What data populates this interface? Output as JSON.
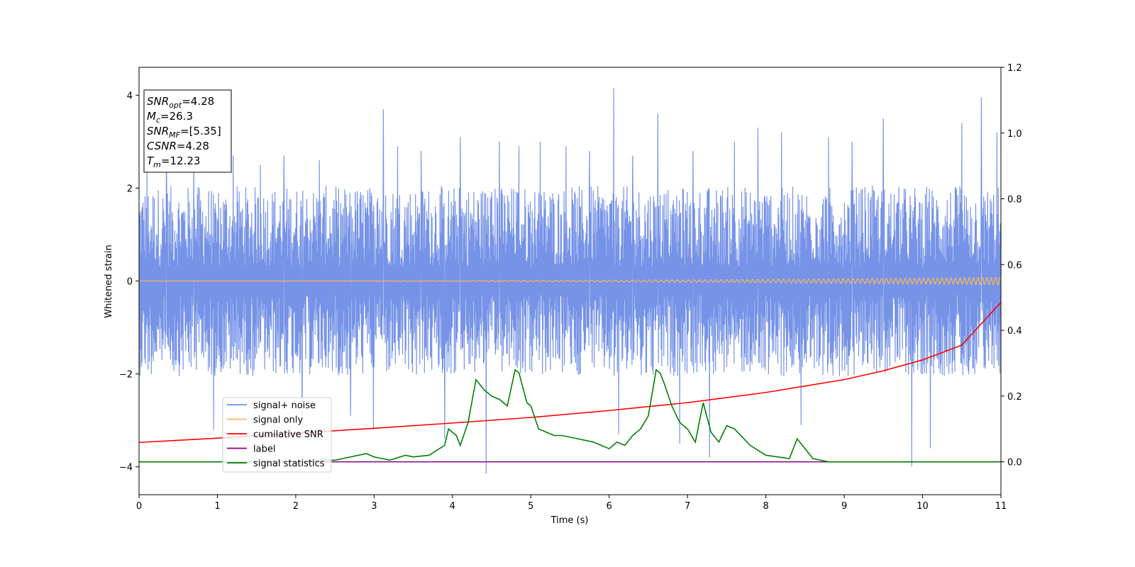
{
  "chart_data": {
    "type": "line",
    "xlabel": "Time (s)",
    "ylabel": "Whitened strain",
    "x_ticks": [
      0,
      1,
      2,
      3,
      4,
      5,
      6,
      7,
      8,
      9,
      10,
      11
    ],
    "xlim": [
      0,
      11
    ],
    "ylim_left": [
      -4.6,
      4.6
    ],
    "ylim_right": [
      -0.1,
      1.2
    ],
    "y_ticks_left": [
      -4,
      -2,
      0,
      2,
      4
    ],
    "y_ticks_right": [
      0.0,
      0.2,
      0.4,
      0.6,
      0.8,
      1.0,
      1.2
    ],
    "grid": false,
    "legend": {
      "position": "lower-left",
      "entries": [
        {
          "label": "signal+ noise",
          "color": "#6f8de6"
        },
        {
          "label": "signal only",
          "color": "#f5b462"
        },
        {
          "label": "cumilative SNR",
          "color": "#ff0000"
        },
        {
          "label": "label",
          "color": "#800080"
        },
        {
          "label": "signal statistics",
          "color": "#008000"
        }
      ]
    },
    "annotation_box": {
      "lines": [
        {
          "base": "SNR",
          "sub": "opt",
          "rest": "=4.28"
        },
        {
          "base": "M",
          "sub": "c",
          "rest": "=26.3"
        },
        {
          "base": "SNR",
          "sub": "MF",
          "rest": "=[5.35]"
        },
        {
          "base": "CSNR",
          "sub": "",
          "rest": "=4.28"
        },
        {
          "base": "T",
          "sub": "m",
          "rest": "=12.23"
        }
      ]
    },
    "series": [
      {
        "name": "signal+ noise",
        "axis": "left",
        "color": "#6f8de6",
        "description_type": "noise",
        "band": 2.0,
        "spikes": [
          [
            0.1,
            2.4
          ],
          [
            0.35,
            2.7
          ],
          [
            0.7,
            2.7
          ],
          [
            0.95,
            -3.2
          ],
          [
            1.2,
            2.7
          ],
          [
            1.55,
            2.5
          ],
          [
            1.85,
            2.7
          ],
          [
            2.08,
            -3.4
          ],
          [
            2.3,
            2.6
          ],
          [
            2.7,
            -2.9
          ],
          [
            2.99,
            -3.2
          ],
          [
            3.12,
            3.7
          ],
          [
            3.3,
            2.9
          ],
          [
            3.6,
            2.8
          ],
          [
            3.9,
            -3.4
          ],
          [
            4.1,
            3.1
          ],
          [
            4.43,
            -4.15
          ],
          [
            4.6,
            3.0
          ],
          [
            4.85,
            2.9
          ],
          [
            5.12,
            3.0
          ],
          [
            5.45,
            2.9
          ],
          [
            5.75,
            2.8
          ],
          [
            6.06,
            4.15
          ],
          [
            6.12,
            -3.3
          ],
          [
            6.3,
            2.7
          ],
          [
            6.62,
            3.6
          ],
          [
            6.9,
            -3.5
          ],
          [
            7.07,
            2.8
          ],
          [
            7.28,
            -3.8
          ],
          [
            7.6,
            3.0
          ],
          [
            7.9,
            3.3
          ],
          [
            8.2,
            3.2
          ],
          [
            8.45,
            -3.1
          ],
          [
            8.8,
            3.1
          ],
          [
            9.1,
            3.0
          ],
          [
            9.5,
            3.5
          ],
          [
            9.86,
            -3.99
          ],
          [
            10.1,
            -3.6
          ],
          [
            10.5,
            3.4
          ],
          [
            10.75,
            3.95
          ],
          [
            10.95,
            3.2
          ]
        ]
      },
      {
        "name": "signal only",
        "axis": "left",
        "color": "#f5b462",
        "description_type": "chirp",
        "final_amplitude": 0.08
      },
      {
        "name": "cumilative SNR",
        "axis": "right",
        "color": "#ff0000",
        "x": [
          0,
          1,
          2,
          3,
          4,
          5,
          6,
          7,
          8,
          9,
          9.5,
          10,
          10.5,
          11
        ],
        "y": [
          0.059,
          0.072,
          0.087,
          0.102,
          0.118,
          0.135,
          0.156,
          0.18,
          0.211,
          0.25,
          0.277,
          0.31,
          0.355,
          0.485
        ]
      },
      {
        "name": "label",
        "axis": "right",
        "color": "#800080",
        "x": [
          0,
          11
        ],
        "y": [
          0.0,
          0.0
        ]
      },
      {
        "name": "signal statistics",
        "axis": "right",
        "color": "#008000",
        "x": [
          0,
          0.5,
          1.0,
          1.5,
          2.0,
          2.3,
          2.5,
          2.6,
          2.8,
          2.9,
          3.0,
          3.2,
          3.4,
          3.5,
          3.7,
          3.9,
          3.95,
          4.05,
          4.1,
          4.2,
          4.3,
          4.4,
          4.5,
          4.6,
          4.7,
          4.8,
          4.85,
          4.95,
          5.0,
          5.1,
          5.2,
          5.3,
          5.4,
          5.6,
          5.8,
          6.0,
          6.1,
          6.2,
          6.3,
          6.4,
          6.5,
          6.6,
          6.65,
          6.7,
          6.8,
          6.9,
          7.0,
          7.1,
          7.2,
          7.3,
          7.4,
          7.5,
          7.6,
          7.8,
          8.0,
          8.3,
          8.4,
          8.6,
          8.8,
          9.0,
          9.5,
          10.0,
          11
        ],
        "y": [
          0.0,
          0.0,
          0.0,
          0.0,
          0.0,
          0.005,
          0.005,
          0.01,
          0.02,
          0.025,
          0.015,
          0.005,
          0.02,
          0.015,
          0.02,
          0.05,
          0.1,
          0.08,
          0.05,
          0.12,
          0.25,
          0.22,
          0.2,
          0.19,
          0.17,
          0.28,
          0.27,
          0.18,
          0.17,
          0.1,
          0.09,
          0.08,
          0.08,
          0.07,
          0.06,
          0.04,
          0.06,
          0.05,
          0.08,
          0.1,
          0.14,
          0.28,
          0.27,
          0.24,
          0.17,
          0.12,
          0.1,
          0.06,
          0.18,
          0.09,
          0.06,
          0.11,
          0.1,
          0.05,
          0.02,
          0.01,
          0.07,
          0.01,
          0.0,
          0.0,
          0.0,
          0.0,
          0.0
        ]
      }
    ]
  }
}
